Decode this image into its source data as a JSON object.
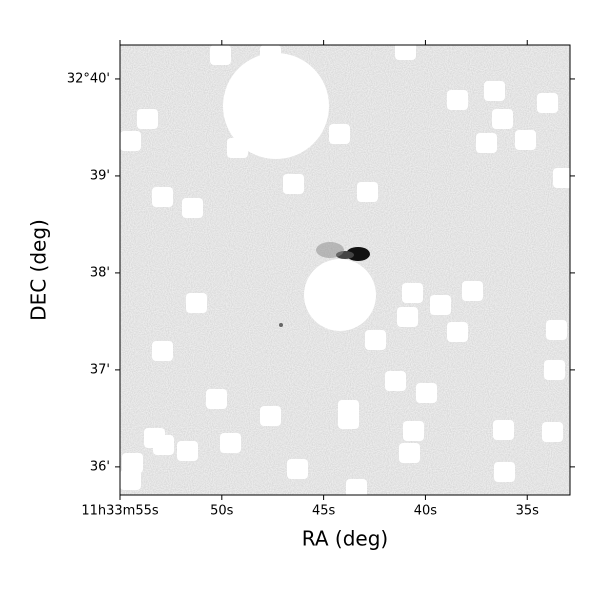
{
  "chart_data": {
    "type": "image",
    "xlabel": "RA (deg)",
    "ylabel": "DEC (deg)",
    "xlim": [
      55,
      32.9
    ],
    "ylim": [
      35.71,
      40.35
    ],
    "xticks": [
      {
        "value": 55,
        "label": "11h33m55s"
      },
      {
        "value": 50,
        "label": "50s"
      },
      {
        "value": 45,
        "label": "45s"
      },
      {
        "value": 40,
        "label": "40s"
      },
      {
        "value": 35,
        "label": "35s"
      }
    ],
    "yticks": [
      {
        "value": 40,
        "label": "32°40'"
      },
      {
        "value": 39,
        "label": "39'"
      },
      {
        "value": 38,
        "label": "38'"
      },
      {
        "value": 37,
        "label": "37'"
      },
      {
        "value": 36,
        "label": "36'"
      }
    ]
  }
}
